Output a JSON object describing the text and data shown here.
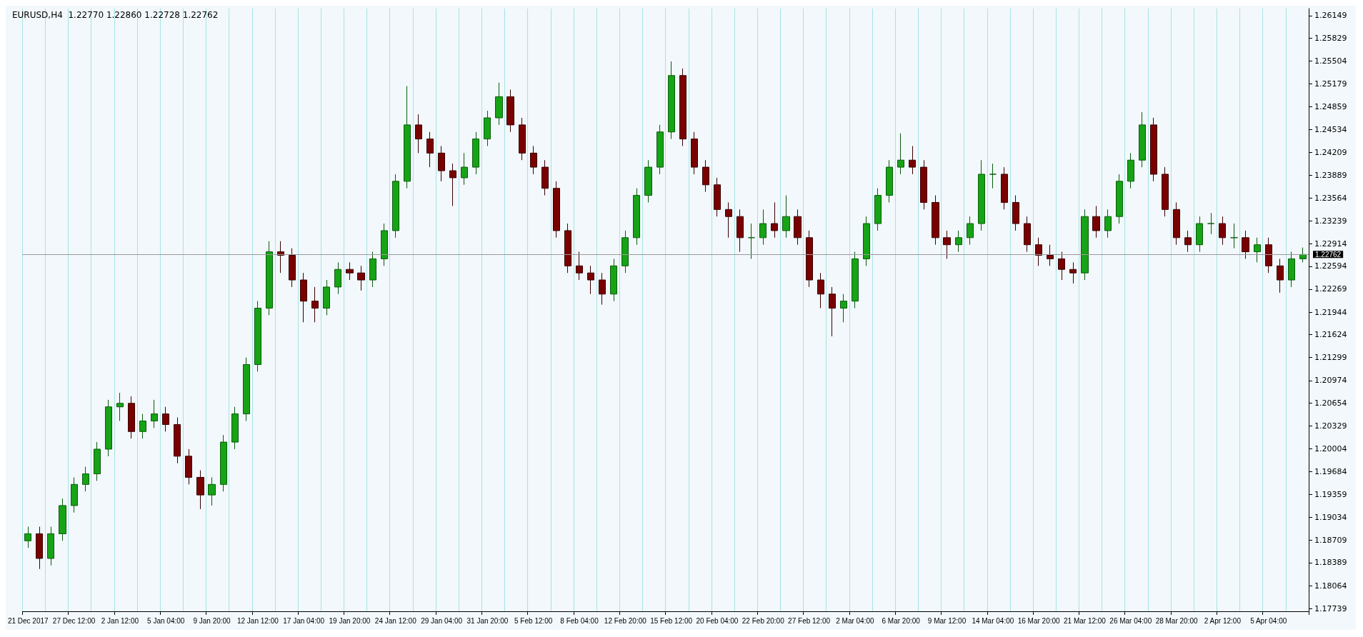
{
  "chart_data": {
    "type": "candlestick",
    "title": "EURUSD,H4  1.22770 1.22860 1.22728 1.22762",
    "categories": [
      "21 Dec 2017",
      null,
      null,
      null,
      "27 Dec 12:00",
      null,
      null,
      null,
      "2 Jan 12:00",
      null,
      null,
      null,
      "5 Jan 04:00",
      null,
      null,
      null,
      "9 Jan 20:00",
      null,
      null,
      null,
      "12 Jan 12:00",
      null,
      null,
      null,
      "17 Jan 04:00",
      null,
      null,
      null,
      "19 Jan 20:00",
      null,
      null,
      null,
      "24 Jan 12:00",
      null,
      null,
      null,
      "29 Jan 04:00",
      null,
      null,
      null,
      "31 Jan 20:00",
      null,
      null,
      null,
      "5 Feb 12:00",
      null,
      null,
      null,
      "8 Feb 04:00",
      null,
      null,
      null,
      "12 Feb 20:00",
      null,
      null,
      null,
      "15 Feb 12:00",
      null,
      null,
      null,
      "20 Feb 04:00",
      null,
      null,
      null,
      "22 Feb 20:00",
      null,
      null,
      null,
      "27 Feb 12:00",
      null,
      null,
      null,
      "2 Mar 04:00",
      null,
      null,
      null,
      "6 Mar 20:00",
      null,
      null,
      null,
      "9 Mar 12:00",
      null,
      null,
      null,
      "14 Mar 04:00",
      null,
      null,
      null,
      "16 Mar 20:00",
      null,
      null,
      null,
      "21 Mar 12:00",
      null,
      null,
      null,
      "26 Mar 04:00",
      null,
      null,
      null,
      "28 Mar 20:00",
      null,
      null,
      null,
      "2 Apr 12:00",
      null,
      null,
      null,
      "5 Apr 04:00",
      null,
      null,
      null
    ],
    "ohlc": [
      [
        1.187,
        1.189,
        1.186,
        1.188
      ],
      [
        1.188,
        1.189,
        1.183,
        1.1845
      ],
      [
        1.1845,
        1.189,
        1.1835,
        1.188
      ],
      [
        1.188,
        1.193,
        1.187,
        1.192
      ],
      [
        1.192,
        1.196,
        1.191,
        1.195
      ],
      [
        1.195,
        1.1975,
        1.194,
        1.1965
      ],
      [
        1.1965,
        1.201,
        1.1955,
        1.2
      ],
      [
        1.2,
        1.207,
        1.199,
        1.206
      ],
      [
        1.206,
        1.208,
        1.204,
        1.2065
      ],
      [
        1.2065,
        1.2075,
        1.2015,
        1.2025
      ],
      [
        1.2025,
        1.205,
        1.2015,
        1.204
      ],
      [
        1.204,
        1.207,
        1.203,
        1.205
      ],
      [
        1.205,
        1.206,
        1.2025,
        1.2035
      ],
      [
        1.2035,
        1.2045,
        1.198,
        1.199
      ],
      [
        1.199,
        1.2,
        1.195,
        1.196
      ],
      [
        1.196,
        1.197,
        1.1915,
        1.1935
      ],
      [
        1.1935,
        1.196,
        1.192,
        1.195
      ],
      [
        1.195,
        1.202,
        1.194,
        1.201
      ],
      [
        1.201,
        1.206,
        1.2,
        1.205
      ],
      [
        1.205,
        1.213,
        1.204,
        1.212
      ],
      [
        1.212,
        1.221,
        1.211,
        1.22
      ],
      [
        1.22,
        1.2295,
        1.219,
        1.228
      ],
      [
        1.228,
        1.2295,
        1.225,
        1.2275
      ],
      [
        1.2275,
        1.2285,
        1.223,
        1.224
      ],
      [
        1.224,
        1.225,
        1.218,
        1.221
      ],
      [
        1.221,
        1.223,
        1.218,
        1.22
      ],
      [
        1.22,
        1.224,
        1.219,
        1.223
      ],
      [
        1.223,
        1.2265,
        1.222,
        1.2255
      ],
      [
        1.2255,
        1.2265,
        1.224,
        1.225
      ],
      [
        1.225,
        1.226,
        1.2225,
        1.224
      ],
      [
        1.224,
        1.228,
        1.223,
        1.227
      ],
      [
        1.227,
        1.232,
        1.226,
        1.231
      ],
      [
        1.231,
        1.239,
        1.23,
        1.238
      ],
      [
        1.238,
        1.2515,
        1.237,
        1.246
      ],
      [
        1.246,
        1.2475,
        1.242,
        1.244
      ],
      [
        1.244,
        1.245,
        1.24,
        1.242
      ],
      [
        1.242,
        1.243,
        1.238,
        1.2395
      ],
      [
        1.2395,
        1.2405,
        1.2345,
        1.2385
      ],
      [
        1.2385,
        1.242,
        1.2375,
        1.24
      ],
      [
        1.24,
        1.245,
        1.239,
        1.244
      ],
      [
        1.244,
        1.248,
        1.243,
        1.247
      ],
      [
        1.247,
        1.252,
        1.246,
        1.25
      ],
      [
        1.25,
        1.251,
        1.245,
        1.246
      ],
      [
        1.246,
        1.247,
        1.241,
        1.242
      ],
      [
        1.242,
        1.243,
        1.239,
        1.24
      ],
      [
        1.24,
        1.241,
        1.236,
        1.237
      ],
      [
        1.237,
        1.238,
        1.23,
        1.231
      ],
      [
        1.231,
        1.232,
        1.225,
        1.226
      ],
      [
        1.226,
        1.228,
        1.224,
        1.225
      ],
      [
        1.225,
        1.226,
        1.222,
        1.224
      ],
      [
        1.224,
        1.225,
        1.2205,
        1.222
      ],
      [
        1.222,
        1.227,
        1.221,
        1.226
      ],
      [
        1.226,
        1.231,
        1.225,
        1.23
      ],
      [
        1.23,
        1.237,
        1.229,
        1.236
      ],
      [
        1.236,
        1.241,
        1.235,
        1.24
      ],
      [
        1.24,
        1.246,
        1.239,
        1.245
      ],
      [
        1.245,
        1.255,
        1.244,
        1.253
      ],
      [
        1.253,
        1.254,
        1.243,
        1.244
      ],
      [
        1.244,
        1.245,
        1.239,
        1.24
      ],
      [
        1.24,
        1.241,
        1.2365,
        1.2375
      ],
      [
        1.2375,
        1.2385,
        1.233,
        1.234
      ],
      [
        1.234,
        1.235,
        1.23,
        1.233
      ],
      [
        1.233,
        1.234,
        1.228,
        1.23
      ],
      [
        1.23,
        1.232,
        1.227,
        1.23
      ],
      [
        1.23,
        1.234,
        1.229,
        1.232
      ],
      [
        1.232,
        1.235,
        1.23,
        1.231
      ],
      [
        1.231,
        1.236,
        1.23,
        1.233
      ],
      [
        1.233,
        1.234,
        1.229,
        1.23
      ],
      [
        1.23,
        1.231,
        1.223,
        1.224
      ],
      [
        1.224,
        1.225,
        1.22,
        1.222
      ],
      [
        1.222,
        1.223,
        1.216,
        1.22
      ],
      [
        1.22,
        1.222,
        1.218,
        1.221
      ],
      [
        1.221,
        1.228,
        1.22,
        1.227
      ],
      [
        1.227,
        1.233,
        1.226,
        1.232
      ],
      [
        1.232,
        1.237,
        1.231,
        1.236
      ],
      [
        1.236,
        1.241,
        1.235,
        1.24
      ],
      [
        1.24,
        1.2448,
        1.239,
        1.241
      ],
      [
        1.241,
        1.243,
        1.239,
        1.24
      ],
      [
        1.24,
        1.241,
        1.234,
        1.235
      ],
      [
        1.235,
        1.236,
        1.229,
        1.23
      ],
      [
        1.23,
        1.231,
        1.227,
        1.229
      ],
      [
        1.229,
        1.231,
        1.228,
        1.23
      ],
      [
        1.23,
        1.233,
        1.229,
        1.232
      ],
      [
        1.232,
        1.241,
        1.231,
        1.239
      ],
      [
        1.239,
        1.2405,
        1.237,
        1.239
      ],
      [
        1.239,
        1.24,
        1.234,
        1.235
      ],
      [
        1.235,
        1.236,
        1.231,
        1.232
      ],
      [
        1.232,
        1.233,
        1.228,
        1.229
      ],
      [
        1.229,
        1.23,
        1.226,
        1.2275
      ],
      [
        1.2275,
        1.229,
        1.226,
        1.227
      ],
      [
        1.227,
        1.228,
        1.224,
        1.2255
      ],
      [
        1.2255,
        1.2265,
        1.2235,
        1.225
      ],
      [
        1.225,
        1.234,
        1.224,
        1.233
      ],
      [
        1.233,
        1.2345,
        1.23,
        1.231
      ],
      [
        1.231,
        1.234,
        1.23,
        1.233
      ],
      [
        1.233,
        1.239,
        1.232,
        1.238
      ],
      [
        1.238,
        1.242,
        1.237,
        1.241
      ],
      [
        1.241,
        1.2478,
        1.24,
        1.246
      ],
      [
        1.246,
        1.247,
        1.238,
        1.239
      ],
      [
        1.239,
        1.24,
        1.233,
        1.234
      ],
      [
        1.234,
        1.235,
        1.229,
        1.23
      ],
      [
        1.23,
        1.231,
        1.228,
        1.229
      ],
      [
        1.229,
        1.233,
        1.228,
        1.232
      ],
      [
        1.232,
        1.2335,
        1.2305,
        1.232
      ],
      [
        1.232,
        1.233,
        1.229,
        1.23
      ],
      [
        1.23,
        1.232,
        1.2285,
        1.23
      ],
      [
        1.23,
        1.231,
        1.227,
        1.228
      ],
      [
        1.228,
        1.23,
        1.2265,
        1.229
      ],
      [
        1.229,
        1.23,
        1.225,
        1.226
      ],
      [
        1.226,
        1.227,
        1.2222,
        1.224
      ],
      [
        1.224,
        1.228,
        1.223,
        1.227
      ],
      [
        1.227,
        1.2286,
        1.2265,
        1.22762
      ]
    ],
    "ylim": [
      1.177,
      1.2625
    ],
    "yticks": [
      1.17739,
      1.18064,
      1.18389,
      1.18709,
      1.19034,
      1.19359,
      1.19684,
      1.20004,
      1.20329,
      1.20654,
      1.20974,
      1.21299,
      1.21624,
      1.21944,
      1.22269,
      1.22594,
      1.22914,
      1.23239,
      1.23564,
      1.23889,
      1.24209,
      1.24534,
      1.24859,
      1.25179,
      1.25504,
      1.25829,
      1.26149
    ],
    "ref_lines": [
      {
        "axis": "y",
        "value": 1.22762,
        "label": "1.22762"
      }
    ],
    "grid": "x"
  }
}
